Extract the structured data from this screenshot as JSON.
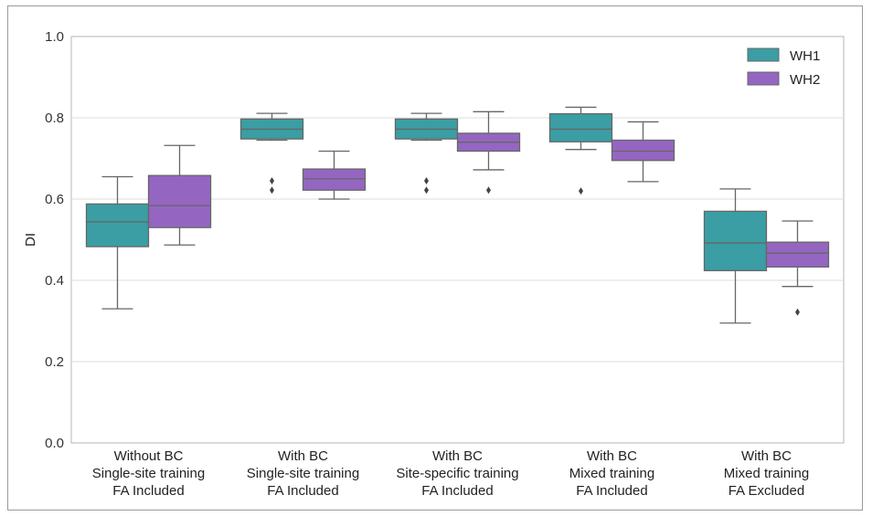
{
  "chart_data": {
    "type": "box",
    "xlabel": "",
    "ylabel": "DI",
    "ylim": [
      0.0,
      1.0
    ],
    "yticks": [
      "0.0",
      "0.2",
      "0.4",
      "0.6",
      "0.8",
      "1.0"
    ],
    "grid": "horizontal",
    "legend_position": "top-right",
    "categories": [
      [
        "Without BC",
        "Single-site training",
        "FA Included"
      ],
      [
        "With BC",
        "Single-site training",
        "FA Included"
      ],
      [
        "With BC",
        "Site-specific training",
        "FA Included"
      ],
      [
        "With BC",
        "Mixed training",
        "FA Included"
      ],
      [
        "With BC",
        "Mixed training",
        "FA Excluded"
      ]
    ],
    "series": [
      {
        "name": "WH1",
        "color": "#3a9ea4",
        "boxes": [
          {
            "whislo": 0.33,
            "q1": 0.483,
            "med": 0.544,
            "q3": 0.588,
            "whishi": 0.655,
            "fliers": []
          },
          {
            "whislo": 0.745,
            "q1": 0.748,
            "med": 0.772,
            "q3": 0.797,
            "whishi": 0.811,
            "fliers": [
              0.645,
              0.622
            ]
          },
          {
            "whislo": 0.745,
            "q1": 0.748,
            "med": 0.772,
            "q3": 0.797,
            "whishi": 0.811,
            "fliers": [
              0.645,
              0.622
            ]
          },
          {
            "whislo": 0.722,
            "q1": 0.741,
            "med": 0.772,
            "q3": 0.81,
            "whishi": 0.826,
            "fliers": [
              0.62
            ]
          },
          {
            "whislo": 0.295,
            "q1": 0.424,
            "med": 0.492,
            "q3": 0.57,
            "whishi": 0.625,
            "fliers": []
          }
        ]
      },
      {
        "name": "WH2",
        "color": "#9466c2",
        "boxes": [
          {
            "whislo": 0.487,
            "q1": 0.53,
            "med": 0.584,
            "q3": 0.658,
            "whishi": 0.732,
            "fliers": []
          },
          {
            "whislo": 0.6,
            "q1": 0.622,
            "med": 0.65,
            "q3": 0.674,
            "whishi": 0.718,
            "fliers": []
          },
          {
            "whislo": 0.672,
            "q1": 0.718,
            "med": 0.74,
            "q3": 0.762,
            "whishi": 0.815,
            "fliers": [
              0.622
            ]
          },
          {
            "whislo": 0.643,
            "q1": 0.695,
            "med": 0.718,
            "q3": 0.745,
            "whishi": 0.79,
            "fliers": []
          },
          {
            "whislo": 0.385,
            "q1": 0.433,
            "med": 0.467,
            "q3": 0.494,
            "whishi": 0.546,
            "fliers": [
              0.322
            ]
          }
        ]
      }
    ]
  }
}
